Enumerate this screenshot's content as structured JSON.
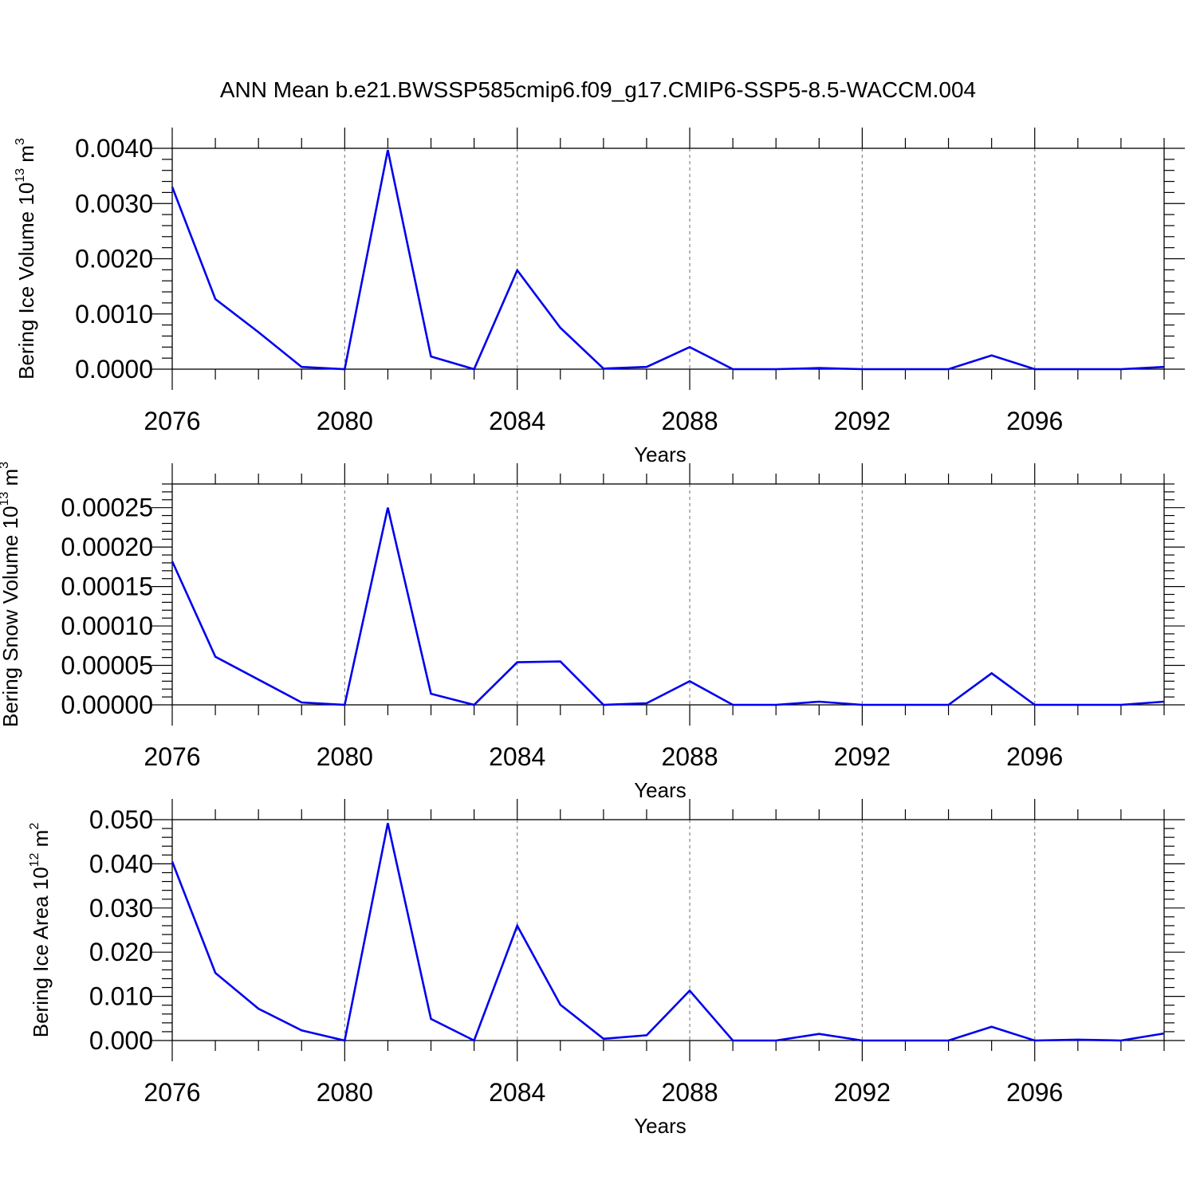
{
  "figure": {
    "title": "ANN Mean b.e21.BWSSP585cmip6.f09_g17.CMIP6-SSP5-8.5-WACCM.004",
    "line_color": "#0000ee",
    "grid_color": "#888888"
  },
  "chart_data": [
    {
      "type": "line",
      "title": "",
      "xlabel": "Years",
      "ylabel": {
        "text": "Bering Ice Volume 10",
        "sup1": "13",
        "unit": " m",
        "sup2": "3"
      },
      "xlim": [
        2076,
        2099
      ],
      "ylim": [
        0,
        0.004
      ],
      "xticks": [
        2076,
        2080,
        2084,
        2088,
        2092,
        2096
      ],
      "xtick_labels": [
        "2076",
        "2080",
        "2084",
        "2088",
        "2092",
        "2096"
      ],
      "yticks": [
        0,
        0.001,
        0.002,
        0.003,
        0.004
      ],
      "ytick_labels": [
        "0.0000",
        "0.0010",
        "0.0020",
        "0.0030",
        "0.0040"
      ],
      "grid": "vertical dashed at major x ticks",
      "series": [
        {
          "name": "Bering Ice Volume",
          "x": [
            2076,
            2077,
            2078,
            2079,
            2080,
            2081,
            2082,
            2083,
            2084,
            2085,
            2086,
            2087,
            2088,
            2089,
            2090,
            2091,
            2092,
            2093,
            2094,
            2095,
            2096,
            2097,
            2098,
            2099
          ],
          "values": [
            0.0033,
            0.00127,
            0.00067,
            4e-05,
            0.0,
            0.00397,
            0.00023,
            0.0,
            0.00179,
            0.00075,
            1e-05,
            4e-05,
            0.0004,
            0.0,
            0.0,
            2e-05,
            0.0,
            0.0,
            0.0,
            0.00025,
            0.0,
            0.0,
            0.0,
            4e-05
          ]
        }
      ]
    },
    {
      "type": "line",
      "title": "",
      "xlabel": "Years",
      "ylabel": {
        "text": "Bering Snow Volume 10",
        "sup1": "13",
        "unit": " m",
        "sup2": "3"
      },
      "xlim": [
        2076,
        2099
      ],
      "ylim": [
        0,
        0.00028
      ],
      "xticks": [
        2076,
        2080,
        2084,
        2088,
        2092,
        2096
      ],
      "xtick_labels": [
        "2076",
        "2080",
        "2084",
        "2088",
        "2092",
        "2096"
      ],
      "yticks": [
        0,
        5e-05,
        0.0001,
        0.00015,
        0.0002,
        0.00025
      ],
      "ytick_labels": [
        "0.00000",
        "0.00005",
        "0.00010",
        "0.00015",
        "0.00020",
        "0.00025"
      ],
      "grid": "vertical dashed at major x ticks",
      "series": [
        {
          "name": "Bering Snow Volume",
          "x": [
            2076,
            2077,
            2078,
            2079,
            2080,
            2081,
            2082,
            2083,
            2084,
            2085,
            2086,
            2087,
            2088,
            2089,
            2090,
            2091,
            2092,
            2093,
            2094,
            2095,
            2096,
            2097,
            2098,
            2099
          ],
          "values": [
            0.000182,
            6.1e-05,
            3.2e-05,
            3e-06,
            0.0,
            0.00025,
            1.4e-05,
            0.0,
            5.4e-05,
            5.5e-05,
            0.0,
            2e-06,
            3e-05,
            0.0,
            0.0,
            4e-06,
            0.0,
            0.0,
            0.0,
            4e-05,
            0.0,
            0.0,
            0.0,
            4e-06
          ]
        }
      ]
    },
    {
      "type": "line",
      "title": "",
      "xlabel": "Years",
      "ylabel": {
        "text": "Bering Ice Area 10",
        "sup1": "12",
        "unit": " m",
        "sup2": "2"
      },
      "xlim": [
        2076,
        2099
      ],
      "ylim": [
        0,
        0.05
      ],
      "xticks": [
        2076,
        2080,
        2084,
        2088,
        2092,
        2096
      ],
      "xtick_labels": [
        "2076",
        "2080",
        "2084",
        "2088",
        "2092",
        "2096"
      ],
      "yticks": [
        0,
        0.01,
        0.02,
        0.03,
        0.04,
        0.05
      ],
      "ytick_labels": [
        "0.000",
        "0.010",
        "0.020",
        "0.030",
        "0.040",
        "0.050"
      ],
      "grid": "vertical dashed at major x ticks",
      "series": [
        {
          "name": "Bering Ice Area",
          "x": [
            2076,
            2077,
            2078,
            2079,
            2080,
            2081,
            2082,
            2083,
            2084,
            2085,
            2086,
            2087,
            2088,
            2089,
            2090,
            2091,
            2092,
            2093,
            2094,
            2095,
            2096,
            2097,
            2098,
            2099
          ],
          "values": [
            0.0405,
            0.0153,
            0.0072,
            0.0023,
            0.0,
            0.0492,
            0.0049,
            0.0,
            0.026,
            0.0081,
            0.0004,
            0.0012,
            0.0113,
            0.0,
            0.0,
            0.0015,
            0.0,
            0.0,
            0.0,
            0.0031,
            0.0,
            0.0002,
            0.0,
            0.0016
          ]
        }
      ]
    }
  ]
}
